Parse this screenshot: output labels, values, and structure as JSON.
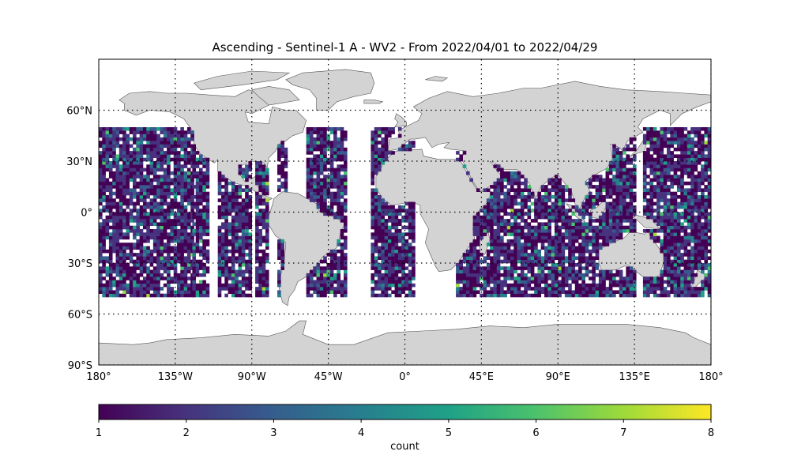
{
  "figure": {
    "title": "Ascending - Sentinel-1 A - WV2 - From 2022/04/01 to 2022/04/29"
  },
  "map": {
    "projection": "PlateCarree",
    "lon_range": [
      -180,
      180
    ],
    "lat_range": [
      -90,
      90
    ],
    "land_color": "#d3d3d3",
    "coastline_color": "#555555",
    "gridlines": "dotted",
    "lon_ticks": [
      {
        "value": -180,
        "label": "180°"
      },
      {
        "value": -135,
        "label": "135°W"
      },
      {
        "value": -90,
        "label": "90°W"
      },
      {
        "value": -45,
        "label": "45°W"
      },
      {
        "value": 0,
        "label": "0°"
      },
      {
        "value": 45,
        "label": "45°E"
      },
      {
        "value": 90,
        "label": "90°E"
      },
      {
        "value": 135,
        "label": "135°E"
      },
      {
        "value": 180,
        "label": "180°"
      }
    ],
    "lat_ticks": [
      {
        "value": 60,
        "label": "60°N"
      },
      {
        "value": 30,
        "label": "30°N"
      },
      {
        "value": 0,
        "label": "0°"
      },
      {
        "value": -30,
        "label": "30°S"
      },
      {
        "value": -60,
        "label": "60°S"
      },
      {
        "value": -90,
        "label": "90°S"
      }
    ]
  },
  "chart_data": {
    "type": "heatmap",
    "title": "Ascending - Sentinel-1 A - WV2 - From 2022/04/01 to 2022/04/29",
    "xlabel": "",
    "ylabel": "",
    "colormap": "viridis",
    "value_range": [
      1,
      8
    ],
    "data_lat_range": [
      -50,
      50
    ],
    "cell_size_deg": 2,
    "swath_bands_lon": [
      [
        -180,
        -125
      ],
      [
        -125,
        -115
      ],
      [
        -110,
        -100
      ],
      [
        -100,
        -90
      ],
      [
        -88,
        -80
      ],
      [
        -75,
        -70
      ],
      [
        -58,
        -35
      ],
      [
        -20,
        5
      ],
      [
        30,
        55
      ],
      [
        52,
        100
      ],
      [
        100,
        135
      ],
      [
        140,
        180
      ]
    ],
    "colorbar": {
      "ticks": [
        1,
        2,
        3,
        4,
        5,
        6,
        7,
        8
      ],
      "label": "count"
    }
  }
}
